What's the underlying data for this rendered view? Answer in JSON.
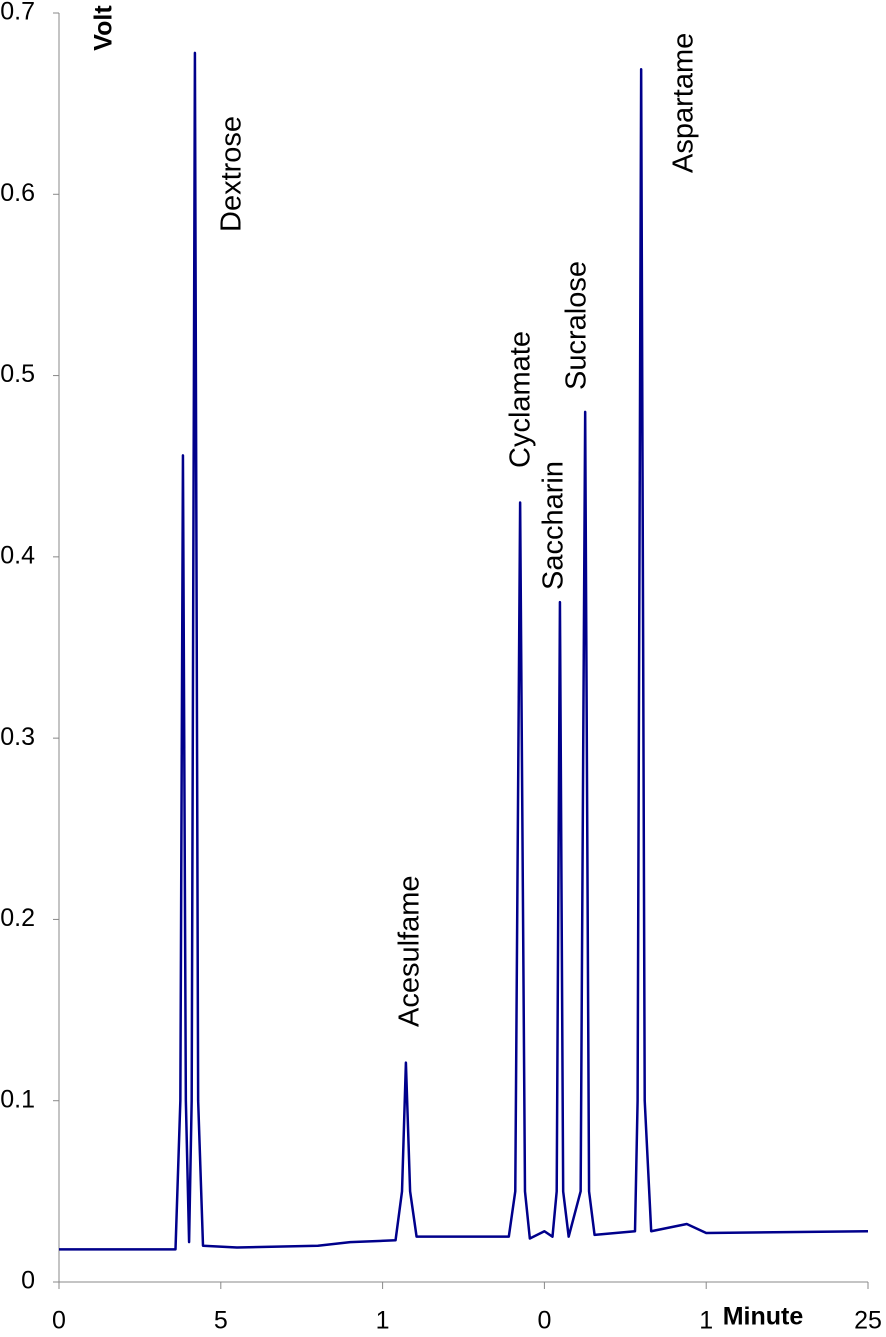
{
  "chart_data": {
    "type": "line",
    "y_label": "Volt",
    "x_label": "Minute",
    "xlim": [
      0,
      25
    ],
    "ylim": [
      0,
      0.7
    ],
    "xticks": [
      0,
      5,
      {
        "value": 10,
        "label": "1"
      },
      {
        "value": 15,
        "label": "0"
      },
      {
        "value": 20,
        "label": "1"
      },
      25
    ],
    "yticks": [
      0,
      0.1,
      0.2,
      0.3,
      0.4,
      0.5,
      0.6,
      0.7
    ],
    "series": [
      {
        "color": "#00008b",
        "x": [
          0,
          3.6,
          3.75,
          3.83,
          3.92,
          4.02,
          4.1,
          4.2,
          4.3,
          4.45,
          5.5,
          8,
          9,
          10.4,
          10.6,
          10.72,
          10.85,
          11.05,
          13.9,
          14.1,
          14.25,
          14.4,
          14.55,
          15,
          15.25,
          15.38,
          15.48,
          15.58,
          15.75,
          16.12,
          16.26,
          16.38,
          16.55,
          17.8,
          17.88,
          17.99,
          18.1,
          18.3,
          19.4,
          20,
          25
        ],
        "values": [
          0.018,
          0.018,
          0.1,
          0.456,
          0.1,
          0.022,
          0.1,
          0.678,
          0.1,
          0.02,
          0.019,
          0.02,
          0.022,
          0.023,
          0.05,
          0.121,
          0.05,
          0.025,
          0.025,
          0.05,
          0.43,
          0.05,
          0.024,
          0.028,
          0.025,
          0.05,
          0.375,
          0.05,
          0.025,
          0.05,
          0.48,
          0.05,
          0.026,
          0.028,
          0.1,
          0.669,
          0.1,
          0.028,
          0.032,
          0.027,
          0.028
        ]
      }
    ],
    "annotations": [
      "Dextrose",
      "Acesulfame",
      "Cyclamate",
      "Saccharin",
      "Sucralose",
      "Aspartame"
    ]
  }
}
